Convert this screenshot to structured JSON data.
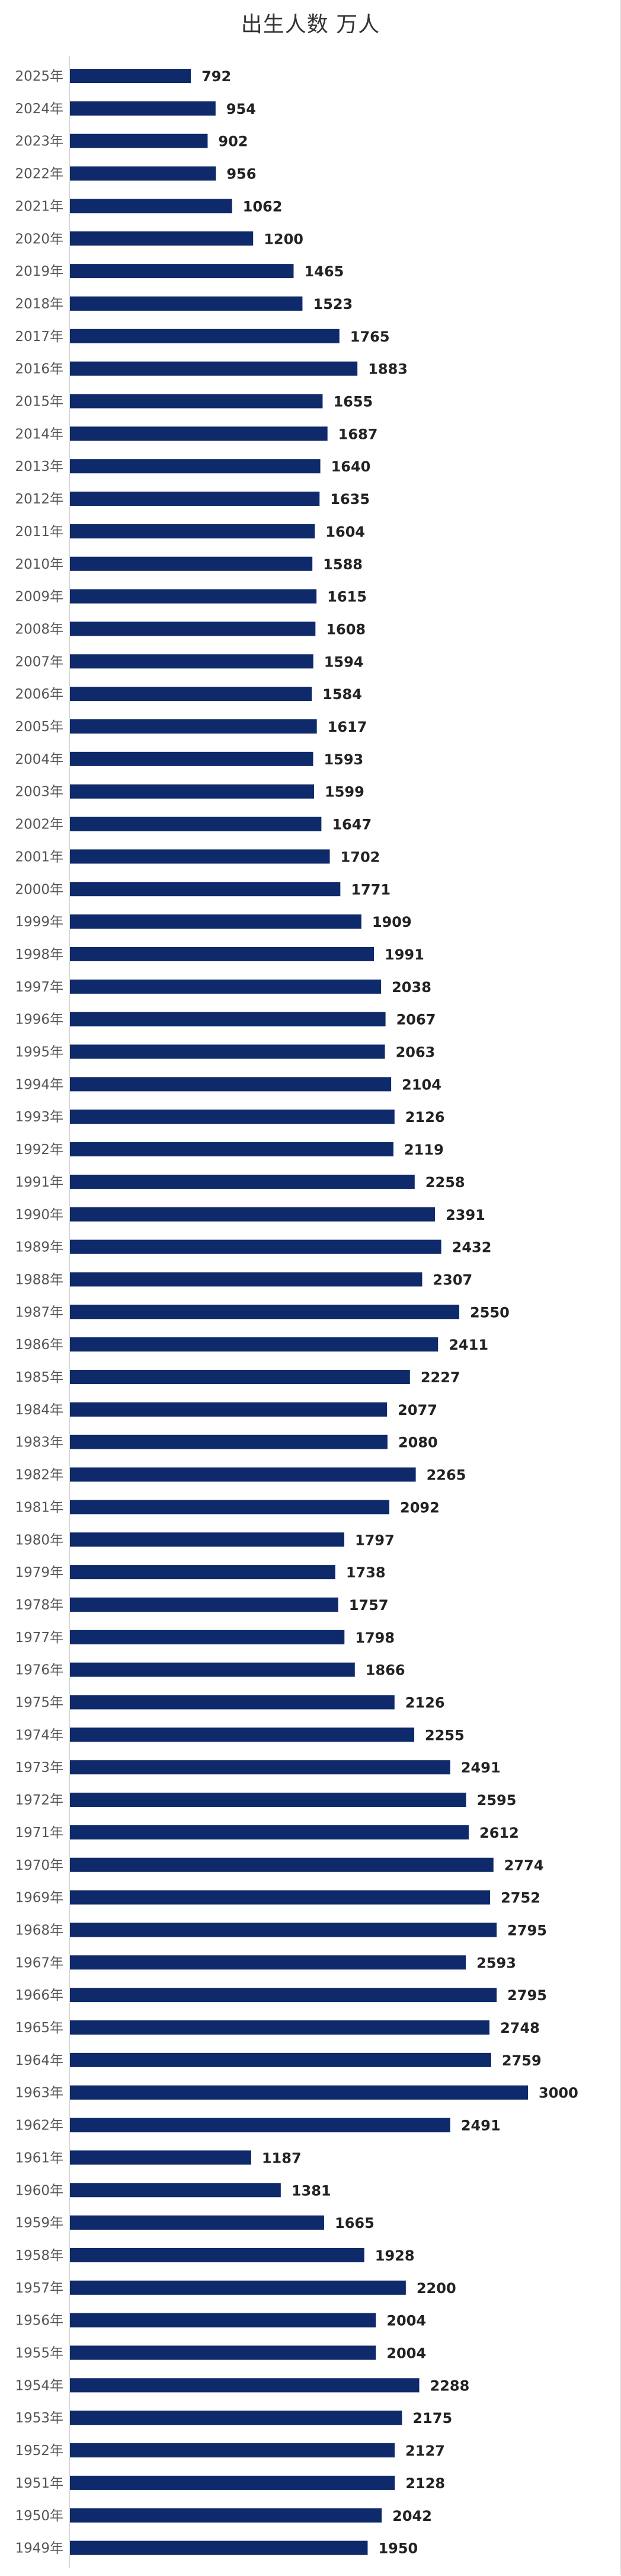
{
  "chart_data": {
    "type": "bar",
    "orientation": "horizontal",
    "title": "出生人数 万人",
    "bar_color": "#0f2a6b",
    "categories": [
      "2025年",
      "2024年",
      "2023年",
      "2022年",
      "2021年",
      "2020年",
      "2019年",
      "2018年",
      "2017年",
      "2016年",
      "2015年",
      "2014年",
      "2013年",
      "2012年",
      "2011年",
      "2010年",
      "2009年",
      "2008年",
      "2007年",
      "2006年",
      "2005年",
      "2004年",
      "2003年",
      "2002年",
      "2001年",
      "2000年",
      "1999年",
      "1998年",
      "1997年",
      "1996年",
      "1995年",
      "1994年",
      "1993年",
      "1992年",
      "1991年",
      "1990年",
      "1989年",
      "1988年",
      "1987年",
      "1986年",
      "1985年",
      "1984年",
      "1983年",
      "1982年",
      "1981年",
      "1980年",
      "1979年",
      "1978年",
      "1977年",
      "1976年",
      "1975年",
      "1974年",
      "1973年",
      "1972年",
      "1971年",
      "1970年",
      "1969年",
      "1968年",
      "1967年",
      "1966年",
      "1965年",
      "1964年",
      "1963年",
      "1962年",
      "1961年",
      "1960年",
      "1959年",
      "1958年",
      "1957年",
      "1956年",
      "1955年",
      "1954年",
      "1953年",
      "1952年",
      "1951年",
      "1950年",
      "1949年"
    ],
    "values": [
      792,
      954,
      902,
      956,
      1062,
      1200,
      1465,
      1523,
      1765,
      1883,
      1655,
      1687,
      1640,
      1635,
      1604,
      1588,
      1615,
      1608,
      1594,
      1584,
      1617,
      1593,
      1599,
      1647,
      1702,
      1771,
      1909,
      1991,
      2038,
      2067,
      2063,
      2104,
      2126,
      2119,
      2258,
      2391,
      2432,
      2307,
      2550,
      2411,
      2227,
      2077,
      2080,
      2265,
      2092,
      1797,
      1738,
      1757,
      1798,
      1866,
      2126,
      2255,
      2491,
      2595,
      2612,
      2774,
      2752,
      2795,
      2593,
      2795,
      2748,
      2759,
      3000,
      2491,
      1187,
      1381,
      1665,
      1928,
      2200,
      2004,
      2004,
      2288,
      2175,
      2127,
      2128,
      2042,
      1950
    ],
    "data_labels": [
      "792",
      "954",
      "902",
      "956",
      "1062",
      "1200",
      "1465",
      "1523",
      "1765",
      "1883",
      "1655",
      "1687",
      "1640",
      "1635",
      "1604",
      "1588",
      "1615",
      "1608",
      "1594",
      "1584",
      "1617",
      "1593",
      "1599",
      "1647",
      "1702",
      "1771",
      "1909",
      "1991",
      "2038",
      "2067",
      "2063",
      "2104",
      "2126",
      "2119",
      "2258",
      "2391",
      "2432",
      "2307",
      "2550",
      "2411",
      "2227",
      "2077",
      "2080",
      "2265",
      "2092",
      "1797",
      "1738",
      "1757",
      "1798",
      "1866",
      "2126",
      "2255",
      "2491",
      "2595",
      "2612",
      "2774",
      "2752",
      "2795",
      "2593",
      "2795",
      "2748",
      "2759",
      "3000",
      "2491",
      "1187",
      "1381",
      "1665",
      "1928",
      "2200",
      "2004",
      "2004",
      "2288",
      "2175",
      "2127",
      "2128",
      "2042",
      "1950"
    ],
    "xlim": [
      0,
      3000
    ],
    "grid": false,
    "legend": "none"
  }
}
